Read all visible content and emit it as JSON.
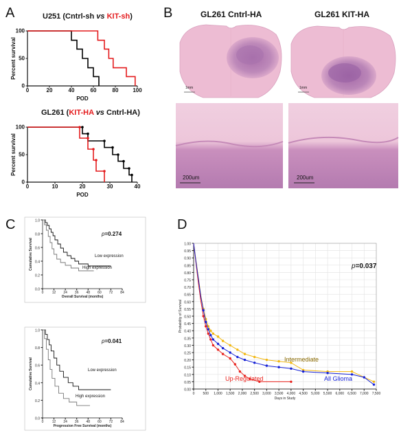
{
  "panels": {
    "A": {
      "letter": "A"
    },
    "B": {
      "letter": "B"
    },
    "C": {
      "letter": "C"
    },
    "D": {
      "letter": "D"
    }
  },
  "panelA": {
    "top": {
      "title_pre": "U251 (Cntrl-sh ",
      "title_vs": "vs",
      "title_red": "KIT-sh",
      "title_post": ")",
      "ylabel": "Percent survival",
      "xlabel": "POD",
      "xticks": [
        "0",
        "20",
        "40",
        "60",
        "80",
        "100"
      ],
      "yticks": [
        "0",
        "50",
        "100"
      ]
    },
    "bottom": {
      "title_pre": "GL261 (",
      "title_red": "KIT-HA",
      "title_vs": "vs",
      "title_post": " Cntrl-HA)",
      "ylabel": "Percent survival",
      "xlabel": "POD",
      "xticks": [
        "0",
        "10",
        "20",
        "30",
        "40"
      ],
      "yticks": [
        "0",
        "50",
        "100"
      ]
    }
  },
  "panelB": {
    "title_left": "GL261 Cntrl-HA",
    "title_right": "GL261 KIT-HA",
    "scale_top_left": "1mm",
    "scale_top_right": "1mm",
    "scale_bottom_left": "200um",
    "scale_bottom_right": "200um",
    "colors": {
      "tissue": "#e9b3cc",
      "tumor": "#b077ae",
      "bg": "#ffffff"
    }
  },
  "panelC": {
    "top": {
      "pvalue_prefix": "p",
      "pvalue": "=0.274",
      "ylabel": "Cumulative Survival",
      "xlabel": "Overall Survival (months)",
      "legend_low": "Low expression",
      "legend_high": "High expression",
      "xticks": [
        "0",
        "12",
        "24",
        "36",
        "48",
        "60",
        "72",
        "84"
      ],
      "yticks": [
        "0.0",
        "0.2",
        "0.4",
        "0.6",
        "0.8",
        "1.0"
      ]
    },
    "bottom": {
      "pvalue_prefix": "p",
      "pvalue": "=0.041",
      "ylabel": "Cumulative Survival",
      "xlabel": "Progression Free Survival (months)",
      "legend_low": "Low expression",
      "legend_high": "High expression",
      "xticks": [
        "0",
        "12",
        "24",
        "36",
        "48",
        "60",
        "72",
        "84"
      ],
      "yticks": [
        "0.0",
        "0.2",
        "0.4",
        "0.6",
        "0.8",
        "1.0"
      ]
    }
  },
  "panelD": {
    "pvalue_prefix": "p",
    "pvalue": "=0.037",
    "ylabel": "Probability of Survival",
    "xlabel": "Days in Study",
    "label_intermediate": "Intermediate",
    "label_up": "Up-Regulated",
    "label_all": "All Glioma",
    "colors": {
      "intermediate": "#f2b70f",
      "up": "#e8231e",
      "all": "#1521d6"
    },
    "xticks": [
      "0",
      "500",
      "1,000",
      "1,500",
      "2,000",
      "2,500",
      "3,000",
      "3,500",
      "4,000",
      "4,500",
      "5,000",
      "5,500",
      "6,000",
      "6,500",
      "7,000",
      "7,500"
    ],
    "yticks": [
      "0.00",
      "0.05",
      "0.10",
      "0.15",
      "0.20",
      "0.25",
      "0.30",
      "0.35",
      "0.40",
      "0.45",
      "0.50",
      "0.55",
      "0.60",
      "0.65",
      "0.70",
      "0.75",
      "0.80",
      "0.85",
      "0.90",
      "0.95",
      "1.00"
    ]
  },
  "chart_data": [
    {
      "type": "line",
      "panel": "A-top",
      "xlabel": "POD",
      "ylabel": "Percent survival",
      "xlim": [
        0,
        100
      ],
      "ylim": [
        0,
        100
      ],
      "series": [
        {
          "name": "Cntrl-sh",
          "color": "#000000",
          "steps": [
            [
              0,
              100
            ],
            [
              40,
              100
            ],
            [
              40,
              83
            ],
            [
              45,
              83
            ],
            [
              45,
              67
            ],
            [
              50,
              67
            ],
            [
              50,
              50
            ],
            [
              55,
              50
            ],
            [
              55,
              33
            ],
            [
              60,
              33
            ],
            [
              60,
              17
            ],
            [
              65,
              17
            ],
            [
              65,
              0
            ]
          ]
        },
        {
          "name": "KIT-sh",
          "color": "#e41a1c",
          "steps": [
            [
              0,
              100
            ],
            [
              64,
              100
            ],
            [
              64,
              83
            ],
            [
              70,
              83
            ],
            [
              70,
              67
            ],
            [
              74,
              67
            ],
            [
              74,
              50
            ],
            [
              78,
              50
            ],
            [
              78,
              33
            ],
            [
              90,
              33
            ],
            [
              90,
              17
            ],
            [
              98,
              17
            ],
            [
              98,
              0
            ]
          ]
        }
      ]
    },
    {
      "type": "line",
      "panel": "A-bottom",
      "xlabel": "POD",
      "ylabel": "Percent survival",
      "xlim": [
        0,
        40
      ],
      "ylim": [
        0,
        100
      ],
      "series": [
        {
          "name": "Cntrl-HA",
          "color": "#000000",
          "steps": [
            [
              0,
              100
            ],
            [
              20,
              100
            ],
            [
              20,
              88
            ],
            [
              22,
              88
            ],
            [
              22,
              75
            ],
            [
              28,
              75
            ],
            [
              28,
              63
            ],
            [
              31,
              63
            ],
            [
              31,
              50
            ],
            [
              33,
              50
            ],
            [
              33,
              38
            ],
            [
              35,
              38
            ],
            [
              35,
              25
            ],
            [
              37,
              25
            ],
            [
              37,
              13
            ],
            [
              38,
              13
            ],
            [
              38,
              0
            ]
          ]
        },
        {
          "name": "KIT-HA",
          "color": "#e41a1c",
          "steps": [
            [
              0,
              100
            ],
            [
              19,
              100
            ],
            [
              19,
              80
            ],
            [
              22,
              80
            ],
            [
              22,
              60
            ],
            [
              24,
              60
            ],
            [
              24,
              40
            ],
            [
              25,
              40
            ],
            [
              25,
              20
            ],
            [
              28,
              20
            ],
            [
              28,
              0
            ]
          ]
        }
      ]
    },
    {
      "type": "line",
      "panel": "C-top",
      "xlabel": "Overall Survival (months)",
      "ylabel": "Cumulative Survival",
      "xlim": [
        0,
        84
      ],
      "ylim": [
        0,
        1
      ],
      "series": [
        {
          "name": "Low expression",
          "color": "#111111",
          "steps": [
            [
              0,
              1.0
            ],
            [
              3,
              1.0
            ],
            [
              3,
              0.96
            ],
            [
              5,
              0.96
            ],
            [
              5,
              0.92
            ],
            [
              7,
              0.92
            ],
            [
              7,
              0.87
            ],
            [
              9,
              0.87
            ],
            [
              9,
              0.82
            ],
            [
              11,
              0.82
            ],
            [
              11,
              0.77
            ],
            [
              13,
              0.77
            ],
            [
              13,
              0.71
            ],
            [
              16,
              0.71
            ],
            [
              16,
              0.65
            ],
            [
              19,
              0.65
            ],
            [
              19,
              0.59
            ],
            [
              22,
              0.59
            ],
            [
              22,
              0.53
            ],
            [
              26,
              0.53
            ],
            [
              26,
              0.48
            ],
            [
              30,
              0.48
            ],
            [
              30,
              0.44
            ],
            [
              34,
              0.44
            ],
            [
              34,
              0.4
            ],
            [
              38,
              0.4
            ],
            [
              38,
              0.36
            ],
            [
              48,
              0.36
            ],
            [
              48,
              0.33
            ],
            [
              72,
              0.33
            ]
          ]
        },
        {
          "name": "High expression",
          "color": "#777777",
          "steps": [
            [
              0,
              1.0
            ],
            [
              2,
              1.0
            ],
            [
              2,
              0.93
            ],
            [
              4,
              0.93
            ],
            [
              4,
              0.85
            ],
            [
              6,
              0.85
            ],
            [
              6,
              0.76
            ],
            [
              8,
              0.76
            ],
            [
              8,
              0.67
            ],
            [
              10,
              0.67
            ],
            [
              10,
              0.58
            ],
            [
              12,
              0.58
            ],
            [
              12,
              0.5
            ],
            [
              15,
              0.5
            ],
            [
              15,
              0.43
            ],
            [
              19,
              0.43
            ],
            [
              19,
              0.38
            ],
            [
              24,
              0.38
            ],
            [
              24,
              0.34
            ],
            [
              30,
              0.34
            ],
            [
              30,
              0.3
            ],
            [
              38,
              0.3
            ],
            [
              38,
              0.26
            ],
            [
              54,
              0.26
            ]
          ]
        }
      ]
    },
    {
      "type": "line",
      "panel": "C-bottom",
      "xlabel": "Progression Free Survival (months)",
      "ylabel": "Cumulative Survival",
      "xlim": [
        0,
        84
      ],
      "ylim": [
        0,
        1
      ],
      "series": [
        {
          "name": "Low expression",
          "color": "#111111",
          "steps": [
            [
              0,
              1.0
            ],
            [
              3,
              1.0
            ],
            [
              3,
              0.95
            ],
            [
              5,
              0.95
            ],
            [
              5,
              0.89
            ],
            [
              7,
              0.89
            ],
            [
              7,
              0.83
            ],
            [
              9,
              0.83
            ],
            [
              9,
              0.76
            ],
            [
              12,
              0.76
            ],
            [
              12,
              0.68
            ],
            [
              15,
              0.68
            ],
            [
              15,
              0.6
            ],
            [
              18,
              0.6
            ],
            [
              18,
              0.53
            ],
            [
              22,
              0.53
            ],
            [
              22,
              0.46
            ],
            [
              27,
              0.46
            ],
            [
              27,
              0.4
            ],
            [
              32,
              0.4
            ],
            [
              32,
              0.36
            ],
            [
              38,
              0.36
            ],
            [
              38,
              0.32
            ],
            [
              72,
              0.32
            ]
          ]
        },
        {
          "name": "High expression",
          "color": "#777777",
          "steps": [
            [
              0,
              1.0
            ],
            [
              2,
              1.0
            ],
            [
              2,
              0.9
            ],
            [
              4,
              0.9
            ],
            [
              4,
              0.78
            ],
            [
              6,
              0.78
            ],
            [
              6,
              0.66
            ],
            [
              8,
              0.66
            ],
            [
              8,
              0.55
            ],
            [
              10,
              0.55
            ],
            [
              10,
              0.45
            ],
            [
              13,
              0.45
            ],
            [
              13,
              0.36
            ],
            [
              17,
              0.36
            ],
            [
              17,
              0.28
            ],
            [
              22,
              0.28
            ],
            [
              22,
              0.22
            ],
            [
              28,
              0.22
            ],
            [
              28,
              0.18
            ],
            [
              36,
              0.18
            ],
            [
              36,
              0.14
            ],
            [
              50,
              0.14
            ]
          ]
        }
      ]
    },
    {
      "type": "line",
      "panel": "D",
      "xlabel": "Days in Study",
      "ylabel": "Probability of Survival",
      "xlim": [
        0,
        7500
      ],
      "ylim": [
        0,
        1
      ],
      "series": [
        {
          "name": "Intermediate",
          "color": "#f2b70f",
          "points": [
            [
              0,
              1.0
            ],
            [
              100,
              0.88
            ],
            [
              200,
              0.76
            ],
            [
              300,
              0.64
            ],
            [
              400,
              0.55
            ],
            [
              500,
              0.48
            ],
            [
              600,
              0.43
            ],
            [
              700,
              0.4
            ],
            [
              800,
              0.38
            ],
            [
              1000,
              0.36
            ],
            [
              1200,
              0.33
            ],
            [
              1500,
              0.3
            ],
            [
              1800,
              0.27
            ],
            [
              2100,
              0.24
            ],
            [
              2500,
              0.22
            ],
            [
              3000,
              0.2
            ],
            [
              3500,
              0.19
            ],
            [
              4000,
              0.18
            ],
            [
              4500,
              0.13
            ],
            [
              5500,
              0.12
            ],
            [
              6500,
              0.12
            ],
            [
              7400,
              0.05
            ]
          ]
        },
        {
          "name": "Up-Regulated",
          "color": "#e8231e",
          "points": [
            [
              0,
              1.0
            ],
            [
              100,
              0.86
            ],
            [
              200,
              0.72
            ],
            [
              300,
              0.6
            ],
            [
              400,
              0.5
            ],
            [
              500,
              0.43
            ],
            [
              600,
              0.38
            ],
            [
              700,
              0.34
            ],
            [
              800,
              0.3
            ],
            [
              1000,
              0.27
            ],
            [
              1200,
              0.24
            ],
            [
              1500,
              0.21
            ],
            [
              1700,
              0.17
            ],
            [
              1900,
              0.12
            ],
            [
              2100,
              0.09
            ],
            [
              2300,
              0.07
            ],
            [
              2700,
              0.05
            ],
            [
              4000,
              0.05
            ]
          ]
        },
        {
          "name": "All Glioma",
          "color": "#1521d6",
          "points": [
            [
              0,
              1.0
            ],
            [
              100,
              0.87
            ],
            [
              200,
              0.75
            ],
            [
              300,
              0.63
            ],
            [
              400,
              0.54
            ],
            [
              500,
              0.46
            ],
            [
              600,
              0.41
            ],
            [
              700,
              0.37
            ],
            [
              800,
              0.34
            ],
            [
              1000,
              0.31
            ],
            [
              1200,
              0.28
            ],
            [
              1500,
              0.25
            ],
            [
              1800,
              0.22
            ],
            [
              2100,
              0.2
            ],
            [
              2500,
              0.18
            ],
            [
              3000,
              0.16
            ],
            [
              3500,
              0.15
            ],
            [
              4000,
              0.14
            ],
            [
              4500,
              0.12
            ],
            [
              5500,
              0.11
            ],
            [
              6500,
              0.1
            ],
            [
              7000,
              0.08
            ],
            [
              7400,
              0.03
            ]
          ]
        }
      ]
    }
  ]
}
